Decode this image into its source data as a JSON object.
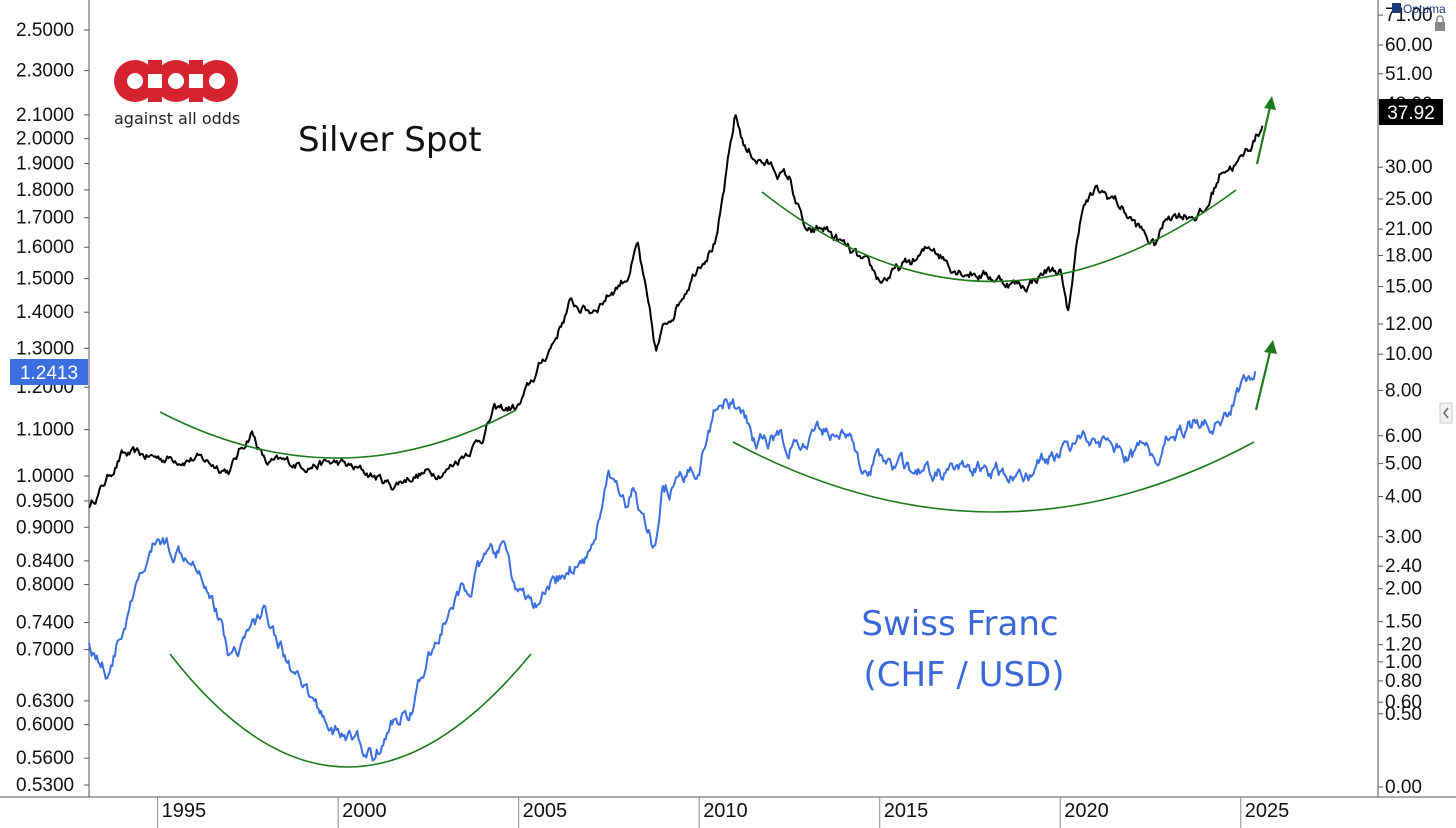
{
  "chart_data": {
    "type": "line",
    "annotations": {
      "silver_title": "Silver Spot",
      "chf_title_line1": "Swiss Franc",
      "chf_title_line2": "(CHF / USD)"
    },
    "branding": {
      "logo_name": "against all odds",
      "watermark": "Optuma"
    },
    "x_axis": {
      "tick_labels": [
        "1995",
        "2000",
        "2005",
        "2010",
        "2015",
        "2020",
        "2025"
      ],
      "range": [
        1993.1,
        2028.8
      ]
    },
    "left_axis": {
      "scale": "log",
      "series": "Swiss Franc (CHF / USD)",
      "tick_labels": [
        "2.5000",
        "2.3000",
        "2.1000",
        "2.0000",
        "1.9000",
        "1.8000",
        "1.7000",
        "1.6000",
        "1.5000",
        "1.4000",
        "1.3000",
        "1.2000",
        "1.1000",
        "1.0000",
        "0.9500",
        "0.9000",
        "0.8400",
        "0.8000",
        "0.7400",
        "0.7000",
        "0.6300",
        "0.6000",
        "0.5600",
        "0.5300"
      ],
      "last_value_label": "1.2413",
      "last_value_color": "#3b6fe0"
    },
    "right_axis": {
      "scale": "log",
      "series": "Silver Spot",
      "tick_labels": [
        "71.00",
        "60.00",
        "51.00",
        "43.00",
        "30.00",
        "25.00",
        "21.00",
        "18.00",
        "15.00",
        "12.00",
        "10.00",
        "8.00",
        "6.00",
        "5.00",
        "4.00",
        "3.00",
        "2.40",
        "2.00",
        "1.50",
        "1.20",
        "1.00",
        "0.80",
        "0.60",
        "0.50",
        "0.00"
      ],
      "last_value_label": "37.92",
      "last_value_color": "#000000"
    },
    "series": [
      {
        "color": "#000000",
        "x": [
          1993.1,
          1994.0,
          1995.0,
          1996.0,
          1997.0,
          1997.6,
          1998.0,
          1999.0,
          2000.0,
          2001.0,
          2001.5,
          2002.0,
          2003.0,
          2004.0,
          2004.3,
          2005.0,
          2006.0,
          2006.4,
          2007.0,
          2008.0,
          2008.3,
          2008.8,
          2009.0,
          2010.0,
          2010.5,
          2011.0,
          2011.3,
          2012.0,
          2012.5,
          2013.0,
          2013.5,
          2014.0,
          2015.0,
          2016.0,
          2016.5,
          2017.0,
          2018.0,
          2019.0,
          2019.6,
          2020.0,
          2020.2,
          2020.6,
          2021.0,
          2021.5,
          2022.0,
          2022.6,
          2023.0,
          2024.0,
          2024.5,
          2025.0,
          2025.6
        ],
        "y": [
          3.7,
          5.3,
          5.2,
          5.2,
          4.8,
          6.2,
          5.0,
          5.0,
          5.0,
          4.6,
          4.3,
          4.6,
          4.8,
          6.0,
          7.0,
          7.2,
          11.0,
          13.5,
          13.0,
          16.0,
          19.0,
          10.0,
          11.5,
          17.5,
          20.0,
          40.0,
          33.0,
          30.0,
          28.0,
          20.0,
          21.0,
          19.0,
          15.5,
          17.5,
          19.0,
          17.0,
          16.0,
          15.0,
          16.5,
          16.5,
          12.5,
          24.0,
          26.0,
          25.0,
          22.0,
          19.0,
          23.0,
          23.0,
          30.0,
          31.0,
          38.0
        ]
      },
      {
        "color": "#3b6fe0",
        "x": [
          1993.1,
          1993.6,
          1994.5,
          1995.0,
          1995.5,
          1996.0,
          1996.5,
          1997.0,
          1998.0,
          1999.0,
          2000.0,
          2000.5,
          2001.0,
          2001.5,
          2002.0,
          2003.0,
          2004.0,
          2004.6,
          2005.0,
          2005.6,
          2006.0,
          2007.0,
          2007.5,
          2008.0,
          2008.2,
          2008.8,
          2009.0,
          2009.5,
          2010.0,
          2010.6,
          2011.0,
          2011.6,
          2012.0,
          2013.0,
          2013.5,
          2014.0,
          2014.5,
          2015.0,
          2015.5,
          2016.0,
          2017.0,
          2018.0,
          2019.0,
          2020.0,
          2020.5,
          2021.0,
          2022.0,
          2022.3,
          2022.8,
          2023.0,
          2024.0,
          2024.5,
          2025.0,
          2025.4
        ],
        "y": [
          0.71,
          0.67,
          0.8,
          0.88,
          0.86,
          0.86,
          0.79,
          0.69,
          0.76,
          0.64,
          0.59,
          0.58,
          0.56,
          0.6,
          0.62,
          0.75,
          0.83,
          0.86,
          0.78,
          0.76,
          0.8,
          0.86,
          1.0,
          0.92,
          0.97,
          0.85,
          0.97,
          0.98,
          1.03,
          1.19,
          1.15,
          1.07,
          1.08,
          1.06,
          1.1,
          1.1,
          1.02,
          1.04,
          1.02,
          1.0,
          1.01,
          1.01,
          1.0,
          1.06,
          1.08,
          1.09,
          1.04,
          1.06,
          1.04,
          1.09,
          1.13,
          1.11,
          1.21,
          1.24
        ]
      }
    ]
  }
}
